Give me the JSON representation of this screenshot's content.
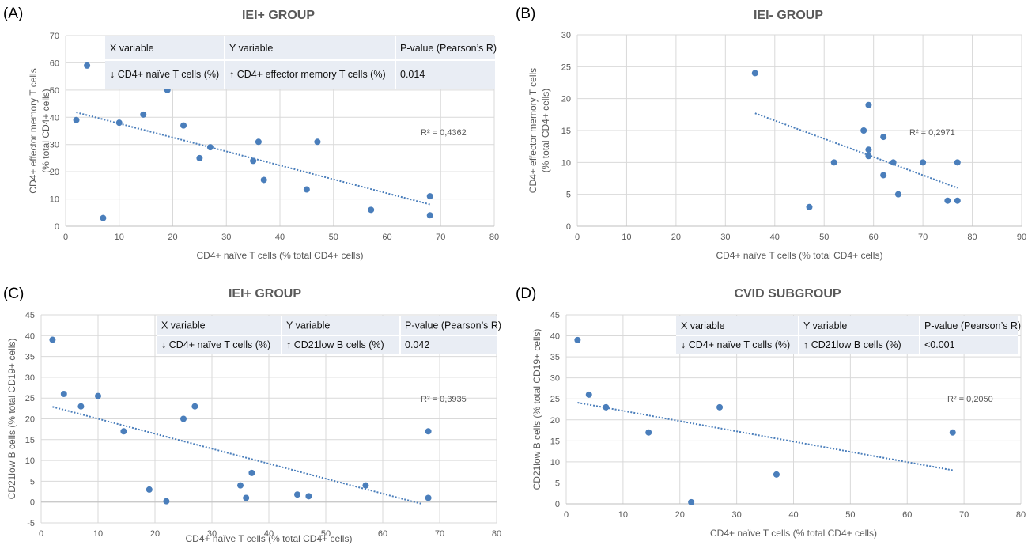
{
  "chart_data": [
    {
      "type": "scatter",
      "label": "(A)",
      "title": "IEI+ GROUP",
      "xlabel": "CD4+ naïve T cells (% total CD4+ cells)",
      "ylabel_lines": [
        "CD4+ effector memory T cells",
        "(% total CD4+ cells)"
      ],
      "xlim": [
        0,
        80
      ],
      "ylim": [
        0,
        70
      ],
      "xticks": [
        0,
        10,
        20,
        30,
        40,
        50,
        60,
        70,
        80
      ],
      "yticks": [
        0,
        10,
        20,
        30,
        40,
        50,
        60,
        70
      ],
      "grid": true,
      "x": [
        4,
        2,
        7,
        10,
        14.5,
        19,
        22,
        25,
        27,
        35,
        36,
        37,
        45,
        47,
        57,
        68,
        68
      ],
      "y": [
        59,
        39,
        3,
        38,
        41,
        50,
        37,
        25,
        29,
        24,
        31,
        17,
        13.5,
        31,
        6,
        11,
        4
      ],
      "trendline": {
        "x": [
          2,
          68
        ],
        "y": [
          41.8,
          8.0
        ]
      },
      "r2_label": "R² = 0,4362",
      "table": {
        "header": [
          "X variable",
          "Y variable",
          "P-value (Pearson’s R)"
        ],
        "row": [
          "↓ CD4+ naïve T cells (%)",
          "↑ CD4+ effector memory T cells (%)",
          "0.014"
        ]
      }
    },
    {
      "type": "scatter",
      "label": "(B)",
      "title": "IEI- GROUP",
      "xlabel": "CD4+ naïve T cells (% total CD4+ cells)",
      "ylabel_lines": [
        "CD4+ effector memory T cells",
        "(% total CD4+ cells)"
      ],
      "xlim": [
        0,
        90
      ],
      "ylim": [
        0,
        30
      ],
      "xticks": [
        0,
        10,
        20,
        30,
        40,
        50,
        60,
        70,
        80,
        90
      ],
      "yticks": [
        0,
        5,
        10,
        15,
        20,
        25,
        30
      ],
      "grid": true,
      "x": [
        36,
        47,
        52,
        58,
        59,
        59,
        59,
        62,
        62,
        64,
        65,
        70,
        75,
        77,
        77
      ],
      "y": [
        24,
        3,
        10,
        15,
        19,
        12,
        11,
        14,
        8,
        10,
        5,
        10,
        4,
        10,
        4
      ],
      "trendline": {
        "x": [
          36,
          77
        ],
        "y": [
          17.7,
          6.0
        ]
      },
      "r2_label": "R² = 0,2971"
    },
    {
      "type": "scatter",
      "label": "(C)",
      "title": "IEI+ GROUP",
      "xlabel": "CD4+ naïve T cells (% total CD4+ cells)",
      "ylabel_lines": [
        "CD21low B cells (% total CD19+ cells)"
      ],
      "xlim": [
        0,
        80
      ],
      "ylim": [
        -5,
        45
      ],
      "xticks": [
        0,
        10,
        20,
        30,
        40,
        50,
        60,
        70,
        80
      ],
      "yticks": [
        -5,
        0,
        5,
        10,
        15,
        20,
        25,
        30,
        35,
        40,
        45
      ],
      "grid": true,
      "x": [
        2,
        4,
        7,
        10,
        14.5,
        19,
        22,
        25,
        27,
        35,
        36,
        37,
        45,
        47,
        57,
        68,
        68
      ],
      "y": [
        39,
        26,
        23,
        25.5,
        17,
        3,
        0.2,
        20,
        23,
        4,
        1,
        7,
        1.8,
        1.4,
        4,
        17,
        1
      ],
      "trendline": {
        "x": [
          2,
          67
        ],
        "y": [
          22.9,
          -0.5
        ]
      },
      "r2_label": "R² = 0,3935",
      "table": {
        "header": [
          "X variable",
          "Y variable",
          "P-value (Pearson’s R)"
        ],
        "row": [
          "↓ CD4+ naïve T cells (%)",
          "↑ CD21low B cells (%)",
          "0.042"
        ]
      }
    },
    {
      "type": "scatter",
      "label": "(D)",
      "title": "CVID SUBGROUP",
      "xlabel": "CD4+ naïve T cells (% total CD4+ cells)",
      "ylabel_lines": [
        "CD21low B cells (% total CD19+ cells)"
      ],
      "xlim": [
        0,
        80
      ],
      "ylim": [
        0,
        45
      ],
      "xticks": [
        0,
        10,
        20,
        30,
        40,
        50,
        60,
        70,
        80
      ],
      "yticks": [
        0,
        5,
        10,
        15,
        20,
        25,
        30,
        35,
        40,
        45
      ],
      "grid": true,
      "x": [
        2,
        4,
        7,
        14.5,
        22,
        27,
        37,
        68
      ],
      "y": [
        39,
        26,
        23,
        17,
        0.4,
        23,
        7,
        17
      ],
      "trendline": {
        "x": [
          2,
          68
        ],
        "y": [
          24.1,
          8.0
        ]
      },
      "r2_label": "R² = 0,2050",
      "table": {
        "header": [
          "X variable",
          "Y variable",
          "P-value (Pearson’s R)"
        ],
        "row": [
          "↓ CD4+ naïve T cells (%)",
          "↑ CD21low B cells (%)",
          "<0.001"
        ]
      }
    }
  ],
  "colors": {
    "point": "#4a7ebb",
    "trend": "#4a7ebb",
    "grid": "#d9d9d9",
    "axis": "#bfbfbf",
    "table_bg": "#e9edf4",
    "table_line": "#ffffff"
  }
}
